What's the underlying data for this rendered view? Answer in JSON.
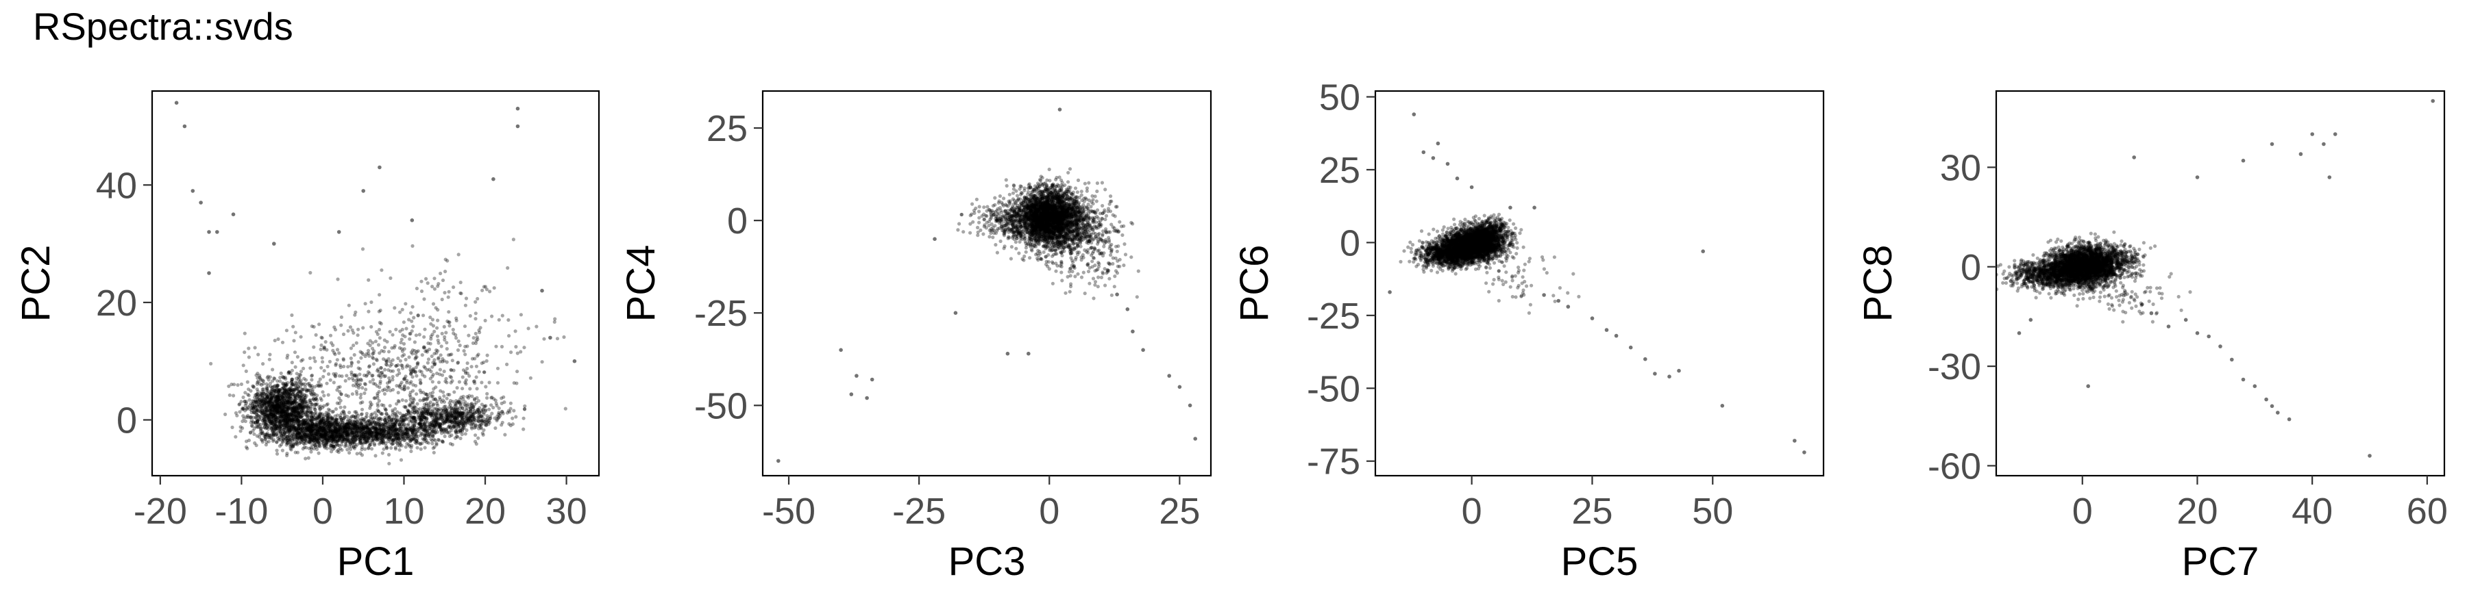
{
  "title": "RSpectra::svds",
  "chart_data": [
    {
      "type": "scatter",
      "xlabel": "PC1",
      "ylabel": "PC2",
      "xlim": [
        -21,
        34
      ],
      "ylim": [
        -9.5,
        56
      ],
      "xticks": [
        -20,
        -10,
        0,
        10,
        20,
        30
      ],
      "yticks": [
        0,
        20,
        40
      ],
      "grid": false,
      "point_color": "#000000",
      "main_cloud": [
        {
          "x": -5,
          "y": 2,
          "sx": 2.2,
          "sy": 2.4,
          "n": 1400
        },
        {
          "x": 0,
          "y": -2,
          "sx": 3.0,
          "sy": 1.4,
          "n": 1100
        },
        {
          "x": 8,
          "y": -2,
          "sx": 4.0,
          "sy": 1.4,
          "n": 900
        },
        {
          "x": 16,
          "y": 0.5,
          "sx": 3.5,
          "sy": 1.4,
          "n": 650
        },
        {
          "x": 8,
          "y": 8,
          "sx": 7.0,
          "sy": 4.5,
          "n": 600
        },
        {
          "x": 14,
          "y": 16,
          "sx": 6.5,
          "sy": 6.0,
          "n": 160
        }
      ],
      "points": [
        {
          "x": -18,
          "y": 54
        },
        {
          "x": -17,
          "y": 50
        },
        {
          "x": -16,
          "y": 39
        },
        {
          "x": -15,
          "y": 37
        },
        {
          "x": -14,
          "y": 32
        },
        {
          "x": -13,
          "y": 32
        },
        {
          "x": -11,
          "y": 35
        },
        {
          "x": -14,
          "y": 25
        },
        {
          "x": 7,
          "y": 43
        },
        {
          "x": 5,
          "y": 39
        },
        {
          "x": 2,
          "y": 32
        },
        {
          "x": 21,
          "y": 41
        },
        {
          "x": 24,
          "y": 53
        },
        {
          "x": 24,
          "y": 50
        },
        {
          "x": 27,
          "y": 22
        },
        {
          "x": 31,
          "y": 10
        },
        {
          "x": 28,
          "y": 14
        },
        {
          "x": 11,
          "y": 34
        },
        {
          "x": -6,
          "y": 30
        }
      ]
    },
    {
      "type": "scatter",
      "xlabel": "PC3",
      "ylabel": "PC4",
      "xlim": [
        -55,
        31
      ],
      "ylim": [
        -69,
        35
      ],
      "xticks": [
        -50,
        -25,
        0,
        25
      ],
      "yticks": [
        25,
        0,
        -25,
        -50
      ],
      "grid": false,
      "point_color": "#000000",
      "main_cloud": [
        {
          "x": 0,
          "y": 1,
          "sx": 3.0,
          "sy": 4.0,
          "n": 2200
        },
        {
          "x": -4,
          "y": 0,
          "sx": 5.0,
          "sy": 3.0,
          "n": 700
        },
        {
          "x": 5,
          "y": -3,
          "sx": 4.0,
          "sy": 5.0,
          "n": 500
        },
        {
          "x": 9,
          "y": -10,
          "sx": 3.5,
          "sy": 6.0,
          "n": 120
        }
      ],
      "points": [
        {
          "x": -52,
          "y": -65
        },
        {
          "x": -40,
          "y": -35
        },
        {
          "x": -37,
          "y": -42
        },
        {
          "x": -35,
          "y": -48
        },
        {
          "x": -34,
          "y": -43
        },
        {
          "x": -38,
          "y": -47
        },
        {
          "x": 27,
          "y": -50
        },
        {
          "x": 28,
          "y": -59
        },
        {
          "x": 25,
          "y": -45
        },
        {
          "x": 23,
          "y": -42
        },
        {
          "x": 18,
          "y": -35
        },
        {
          "x": 16,
          "y": -30
        },
        {
          "x": 15,
          "y": -24
        },
        {
          "x": 13,
          "y": -20
        },
        {
          "x": 2,
          "y": 30
        },
        {
          "x": -22,
          "y": -5
        },
        {
          "x": -18,
          "y": -25
        },
        {
          "x": -8,
          "y": -36
        },
        {
          "x": -4,
          "y": -36
        }
      ]
    },
    {
      "type": "scatter",
      "xlabel": "PC5",
      "ylabel": "PC6",
      "xlim": [
        -20,
        73
      ],
      "ylim": [
        -80,
        52
      ],
      "xticks": [
        0,
        25,
        50
      ],
      "yticks": [
        50,
        25,
        0,
        -25,
        -50,
        -75
      ],
      "grid": false,
      "point_color": "#000000",
      "main_cloud": [
        {
          "x": 0,
          "y": -1,
          "sx": 3.2,
          "sy": 2.8,
          "n": 2100
        },
        {
          "x": -5,
          "y": -4,
          "sx": 3.0,
          "sy": 2.2,
          "n": 800
        },
        {
          "x": 3,
          "y": 3,
          "sx": 2.5,
          "sy": 2.5,
          "n": 600
        },
        {
          "x": 10,
          "y": -12,
          "sx": 4.0,
          "sy": 5.0,
          "n": 60
        }
      ],
      "points": [
        {
          "x": -12,
          "y": 44
        },
        {
          "x": -10,
          "y": 31
        },
        {
          "x": -7,
          "y": 34
        },
        {
          "x": -5,
          "y": 27
        },
        {
          "x": -8,
          "y": 29
        },
        {
          "x": -3,
          "y": 22
        },
        {
          "x": 0,
          "y": 19
        },
        {
          "x": 8,
          "y": 12
        },
        {
          "x": 13,
          "y": 12
        },
        {
          "x": 15,
          "y": -18
        },
        {
          "x": 18,
          "y": -20
        },
        {
          "x": 20,
          "y": -22
        },
        {
          "x": 25,
          "y": -26
        },
        {
          "x": 28,
          "y": -30
        },
        {
          "x": 30,
          "y": -32
        },
        {
          "x": 33,
          "y": -36
        },
        {
          "x": 36,
          "y": -40
        },
        {
          "x": 38,
          "y": -45
        },
        {
          "x": 41,
          "y": -46
        },
        {
          "x": 43,
          "y": -44
        },
        {
          "x": 52,
          "y": -56
        },
        {
          "x": 67,
          "y": -68
        },
        {
          "x": 69,
          "y": -72
        },
        {
          "x": 48,
          "y": -3
        },
        {
          "x": -17,
          "y": -17
        }
      ]
    },
    {
      "type": "scatter",
      "xlabel": "PC7",
      "ylabel": "PC8",
      "xlim": [
        -15,
        63
      ],
      "ylim": [
        -63,
        53
      ],
      "xticks": [
        0,
        20,
        40,
        60
      ],
      "yticks": [
        30,
        0,
        -30,
        -60
      ],
      "grid": false,
      "point_color": "#000000",
      "main_cloud": [
        {
          "x": 0,
          "y": 0,
          "sx": 3.0,
          "sy": 3.0,
          "n": 2200
        },
        {
          "x": -6,
          "y": -2,
          "sx": 3.5,
          "sy": 2.2,
          "n": 800
        },
        {
          "x": 4,
          "y": 2,
          "sx": 3.0,
          "sy": 2.5,
          "n": 600
        },
        {
          "x": 8,
          "y": -8,
          "sx": 4.0,
          "sy": 4.0,
          "n": 80
        }
      ],
      "points": [
        {
          "x": 61,
          "y": 50
        },
        {
          "x": 44,
          "y": 40
        },
        {
          "x": 40,
          "y": 40
        },
        {
          "x": 42,
          "y": 37
        },
        {
          "x": 38,
          "y": 34
        },
        {
          "x": 33,
          "y": 37
        },
        {
          "x": 28,
          "y": 32
        },
        {
          "x": 20,
          "y": 27
        },
        {
          "x": 9,
          "y": 33
        },
        {
          "x": 43,
          "y": 27
        },
        {
          "x": 26,
          "y": -28
        },
        {
          "x": 24,
          "y": -24
        },
        {
          "x": 20,
          "y": -20
        },
        {
          "x": 22,
          "y": -21
        },
        {
          "x": 28,
          "y": -34
        },
        {
          "x": 30,
          "y": -36
        },
        {
          "x": 32,
          "y": -40
        },
        {
          "x": 34,
          "y": -44
        },
        {
          "x": 36,
          "y": -46
        },
        {
          "x": 33,
          "y": -42
        },
        {
          "x": 50,
          "y": -57
        },
        {
          "x": 1,
          "y": -36
        },
        {
          "x": -11,
          "y": -20
        },
        {
          "x": -9,
          "y": -16
        },
        {
          "x": 12,
          "y": -14
        },
        {
          "x": 15,
          "y": -18
        },
        {
          "x": 18,
          "y": -16
        }
      ]
    }
  ]
}
